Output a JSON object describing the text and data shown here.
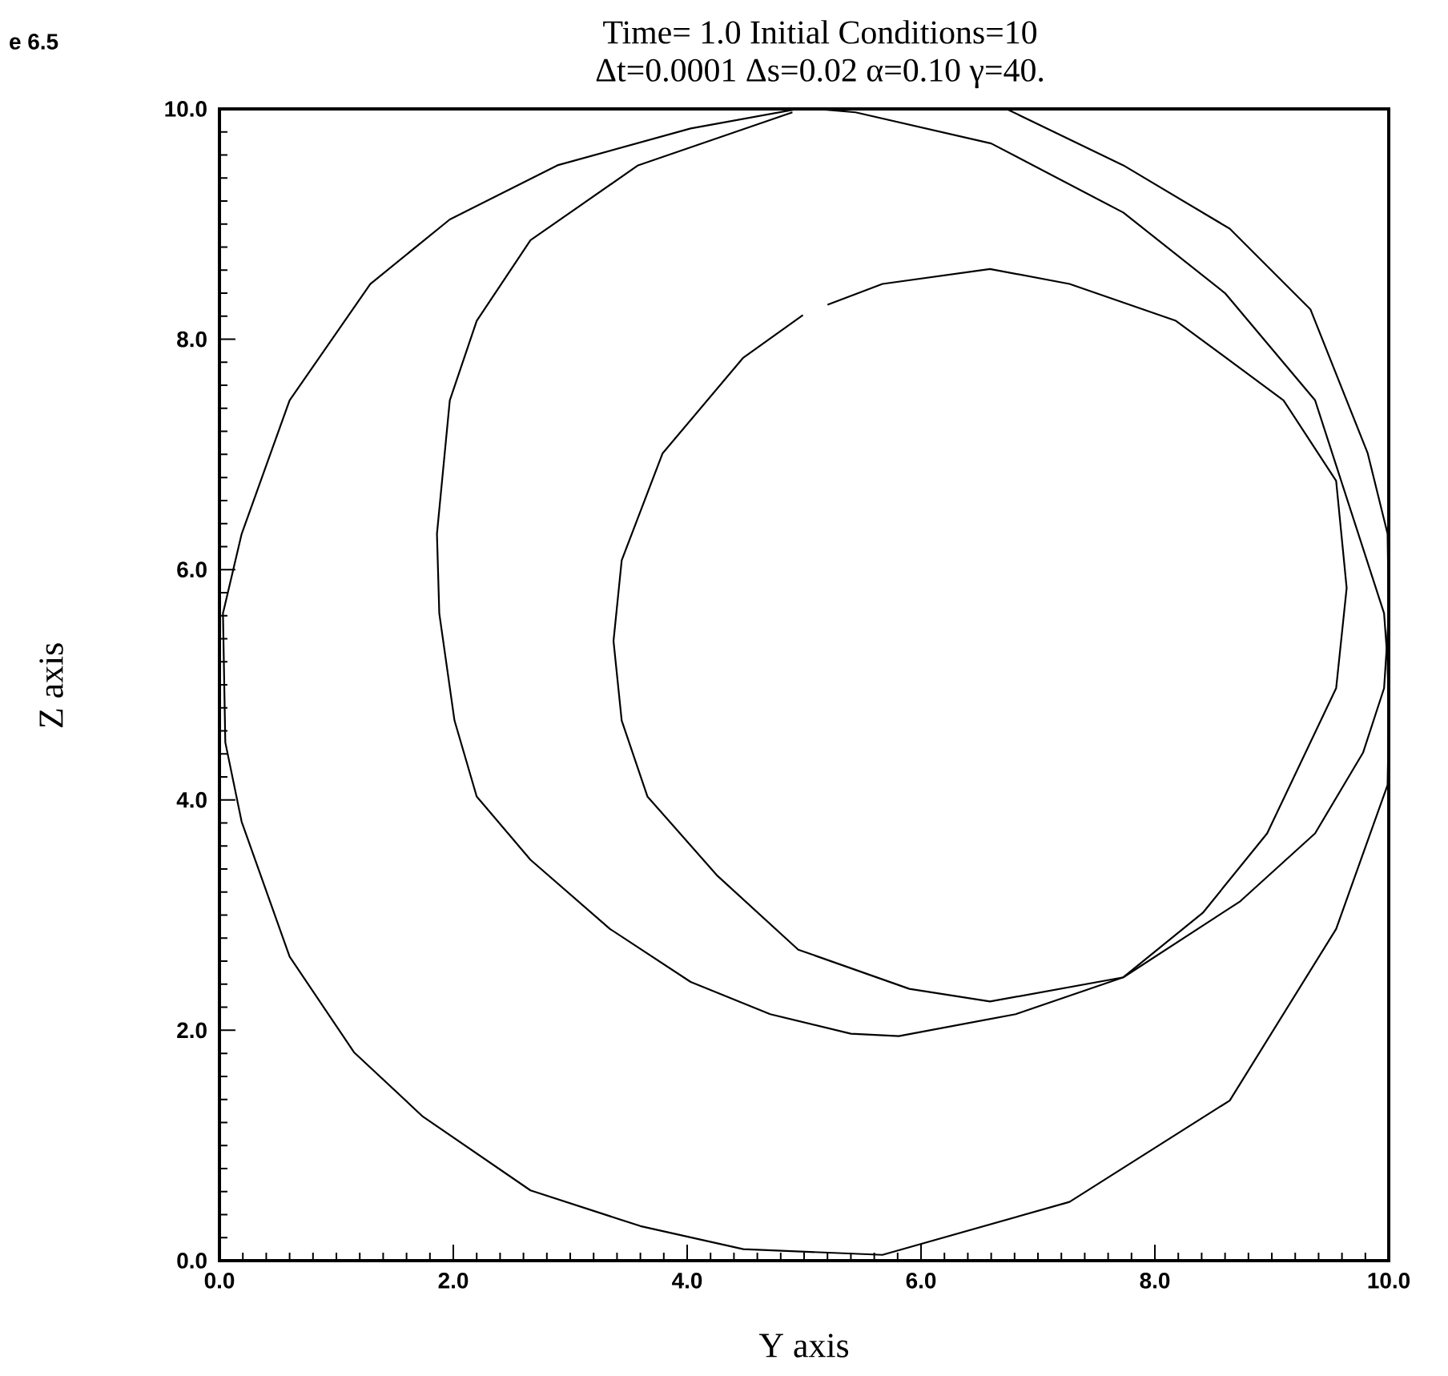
{
  "chart_data": {
    "type": "line",
    "title": "Time= 1.0    Initial Conditions=10",
    "subtitle": "Δt=0.0001   Δs=0.02    α=0.10   γ=40.",
    "xlabel": "Y axis",
    "ylabel": "Z axis",
    "annotations": [
      "e 6.5"
    ],
    "xlim": [
      0,
      10
    ],
    "ylim": [
      0,
      10
    ],
    "xticks": [
      {
        "value": 0,
        "label": "0.0"
      },
      {
        "value": 2,
        "label": "2.0"
      },
      {
        "value": 4,
        "label": "4.0"
      },
      {
        "value": 6,
        "label": "6.0"
      },
      {
        "value": 8,
        "label": "8.0"
      },
      {
        "value": 10,
        "label": "10.0"
      }
    ],
    "yticks": [
      {
        "value": 0,
        "label": "0.0"
      },
      {
        "value": 2,
        "label": "2.0"
      },
      {
        "value": 4,
        "label": "4.0"
      },
      {
        "value": 6,
        "label": "6.0"
      },
      {
        "value": 8,
        "label": "8.0"
      },
      {
        "value": 10,
        "label": "10.0"
      }
    ],
    "marker": "none",
    "line_style": "solid",
    "series": [
      {
        "color": "#000000",
        "x": [
          4.95,
          4.03,
          2.89,
          1.97,
          1.29,
          0.6,
          0.19,
          0.03,
          0.05,
          0.19,
          0.6,
          1.15,
          1.74,
          2.66,
          3.6,
          4.48,
          5.67,
          7.27,
          8.64,
          9.55,
          9.99,
          10.0,
          9.99,
          9.96,
          9.37,
          8.6,
          7.73,
          6.6,
          5.44,
          5.1
        ],
        "values": [
          10.0,
          9.83,
          9.51,
          9.04,
          8.48,
          7.47,
          6.31,
          5.62,
          4.5,
          3.81,
          2.64,
          1.81,
          1.25,
          0.61,
          0.3,
          0.1,
          0.05,
          0.51,
          1.39,
          2.88,
          4.13,
          4.7,
          5.2,
          5.62,
          7.47,
          8.4,
          9.1,
          9.7,
          9.97,
          10.0
        ]
      },
      {
        "color": "#000000",
        "x": [
          4.9,
          3.58,
          2.66,
          2.2,
          1.97,
          1.86,
          1.88,
          2.01,
          2.2,
          2.66,
          3.34,
          4.03,
          4.71,
          5.4,
          5.81,
          6.81,
          7.73,
          8.73,
          9.37,
          9.78,
          9.96,
          10.0,
          9.99,
          9.82,
          9.33,
          8.64,
          7.73,
          6.73,
          5.8,
          5.2
        ],
        "values": [
          9.97,
          9.51,
          8.86,
          8.16,
          7.47,
          6.31,
          5.62,
          4.69,
          4.03,
          3.48,
          2.88,
          2.42,
          2.14,
          1.97,
          1.95,
          2.14,
          2.46,
          3.12,
          3.71,
          4.41,
          4.97,
          5.6,
          6.31,
          7.01,
          8.26,
          8.96,
          9.51,
          10.0,
          10.0,
          10.0
        ]
      },
      {
        "color": "#000000",
        "x": [
          4.99,
          4.48,
          3.79,
          3.44,
          3.37,
          3.44,
          3.66,
          4.26,
          4.95,
          5.9,
          6.59,
          7.73,
          8.41,
          8.96,
          9.55,
          9.64,
          9.55,
          9.1,
          8.18,
          7.27,
          6.59,
          5.67,
          5.2
        ],
        "values": [
          8.21,
          7.84,
          7.01,
          6.08,
          5.38,
          4.69,
          4.03,
          3.34,
          2.7,
          2.36,
          2.25,
          2.46,
          3.02,
          3.71,
          4.97,
          5.84,
          6.77,
          7.47,
          8.16,
          8.48,
          8.61,
          8.48,
          8.3
        ]
      }
    ]
  }
}
